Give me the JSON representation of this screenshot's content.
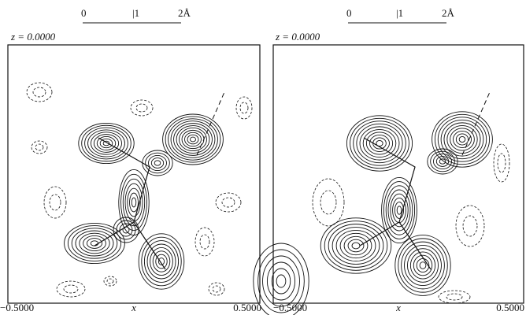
{
  "panels": [
    {
      "scale_bar": {
        "labels": [
          "0",
          "|1",
          "2Å"
        ]
      },
      "z_label": "z = 0.0000",
      "x_axis": {
        "min_label": "−0.5000",
        "axis_label": "x",
        "max_label": "0.5000"
      }
    },
    {
      "scale_bar": {
        "labels": [
          "0",
          "|1",
          "2Å"
        ]
      },
      "z_label": "z = 0.0000",
      "x_axis": {
        "min_label": "−0.5000",
        "axis_label": "x",
        "max_label": "0.5000"
      }
    }
  ]
}
